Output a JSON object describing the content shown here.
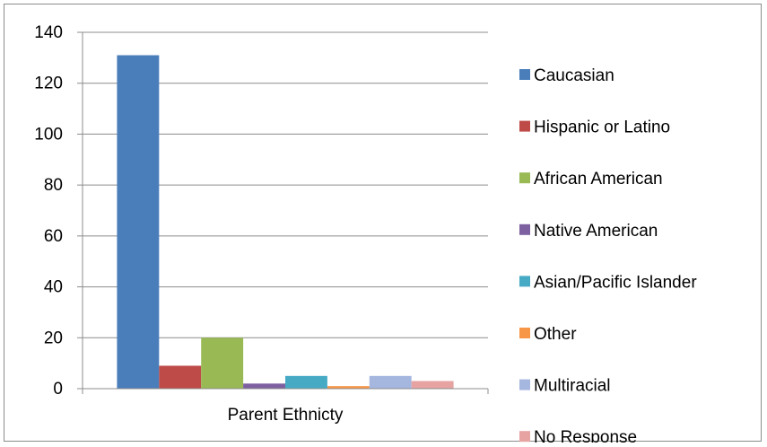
{
  "chart_data": {
    "type": "bar",
    "title": "",
    "xlabel": "",
    "ylabel": "",
    "categories": [
      "Parent Ethnicty"
    ],
    "series": [
      {
        "name": "Caucasian",
        "values": [
          131
        ],
        "color": "#4A7EBB"
      },
      {
        "name": "Hispanic or Latino",
        "values": [
          9
        ],
        "color": "#BE4B48"
      },
      {
        "name": "African American",
        "values": [
          20
        ],
        "color": "#98B954"
      },
      {
        "name": "Native American",
        "values": [
          2
        ],
        "color": "#7D60A0"
      },
      {
        "name": "Asian/Pacific Islander",
        "values": [
          5
        ],
        "color": "#46AAC5"
      },
      {
        "name": "Other",
        "values": [
          1
        ],
        "color": "#F79646"
      },
      {
        "name": "Multiracial",
        "values": [
          5
        ],
        "color": "#A5B6DF"
      },
      {
        "name": "No Response",
        "values": [
          3
        ],
        "color": "#E6A3A2"
      }
    ],
    "ylim": [
      0,
      140
    ],
    "yticks": [
      "0",
      "20",
      "40",
      "60",
      "80",
      "100",
      "120",
      "140"
    ],
    "grid": true,
    "legend_position": "right"
  }
}
